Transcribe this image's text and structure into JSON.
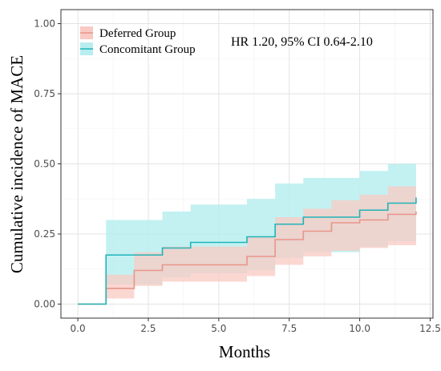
{
  "chart_data": {
    "type": "line",
    "subtype": "step",
    "title": "",
    "xlabel": "Months",
    "ylabel": "Cumulative incidence of MACE",
    "xlim": [
      -0.6,
      12.6
    ],
    "ylim": [
      -0.05,
      1.05
    ],
    "xticks": [
      0,
      2.5,
      5,
      7.5,
      10,
      12.5
    ],
    "xtick_labels": [
      "0.0",
      "2.5",
      "5.0",
      "7.5",
      "10.0",
      "12.5"
    ],
    "yticks": [
      0,
      0.25,
      0.5,
      0.75,
      1.0
    ],
    "ytick_labels": [
      "0.00",
      "0.25",
      "0.50",
      "0.75",
      "1.00"
    ],
    "grid": true,
    "legend_position": "top-left",
    "annotation": "HR 1.20, 95% CI 0.64-2.10",
    "series": [
      {
        "name": "Deferred Group",
        "color": "#e8958a",
        "band_color": "#f9c9c3",
        "x": [
          0,
          1,
          2,
          3,
          4,
          5,
          6,
          7,
          8,
          9,
          10,
          11,
          12
        ],
        "y": [
          0.0,
          0.056,
          0.12,
          0.14,
          0.14,
          0.14,
          0.17,
          0.23,
          0.26,
          0.29,
          0.3,
          0.32,
          0.33
        ],
        "lower": [
          0.0,
          0.02,
          0.065,
          0.08,
          0.08,
          0.08,
          0.1,
          0.14,
          0.17,
          0.19,
          0.2,
          0.21,
          0.22
        ],
        "upper": [
          0.0,
          0.105,
          0.185,
          0.205,
          0.205,
          0.205,
          0.24,
          0.31,
          0.34,
          0.37,
          0.39,
          0.42,
          0.43
        ]
      },
      {
        "name": "Concomitant Group",
        "color": "#21b3b8",
        "band_color": "#b8eef0",
        "x": [
          0,
          1,
          2,
          3,
          4,
          5,
          6,
          7,
          8,
          9,
          10,
          11,
          12
        ],
        "y": [
          0.0,
          0.175,
          0.175,
          0.2,
          0.22,
          0.22,
          0.24,
          0.285,
          0.31,
          0.31,
          0.335,
          0.36,
          0.38
        ],
        "lower": [
          0.0,
          0.07,
          0.07,
          0.095,
          0.11,
          0.11,
          0.12,
          0.165,
          0.185,
          0.185,
          0.205,
          0.225,
          0.235
        ],
        "upper": [
          0.0,
          0.3,
          0.3,
          0.33,
          0.355,
          0.355,
          0.375,
          0.43,
          0.45,
          0.45,
          0.475,
          0.5,
          0.525
        ]
      }
    ]
  }
}
